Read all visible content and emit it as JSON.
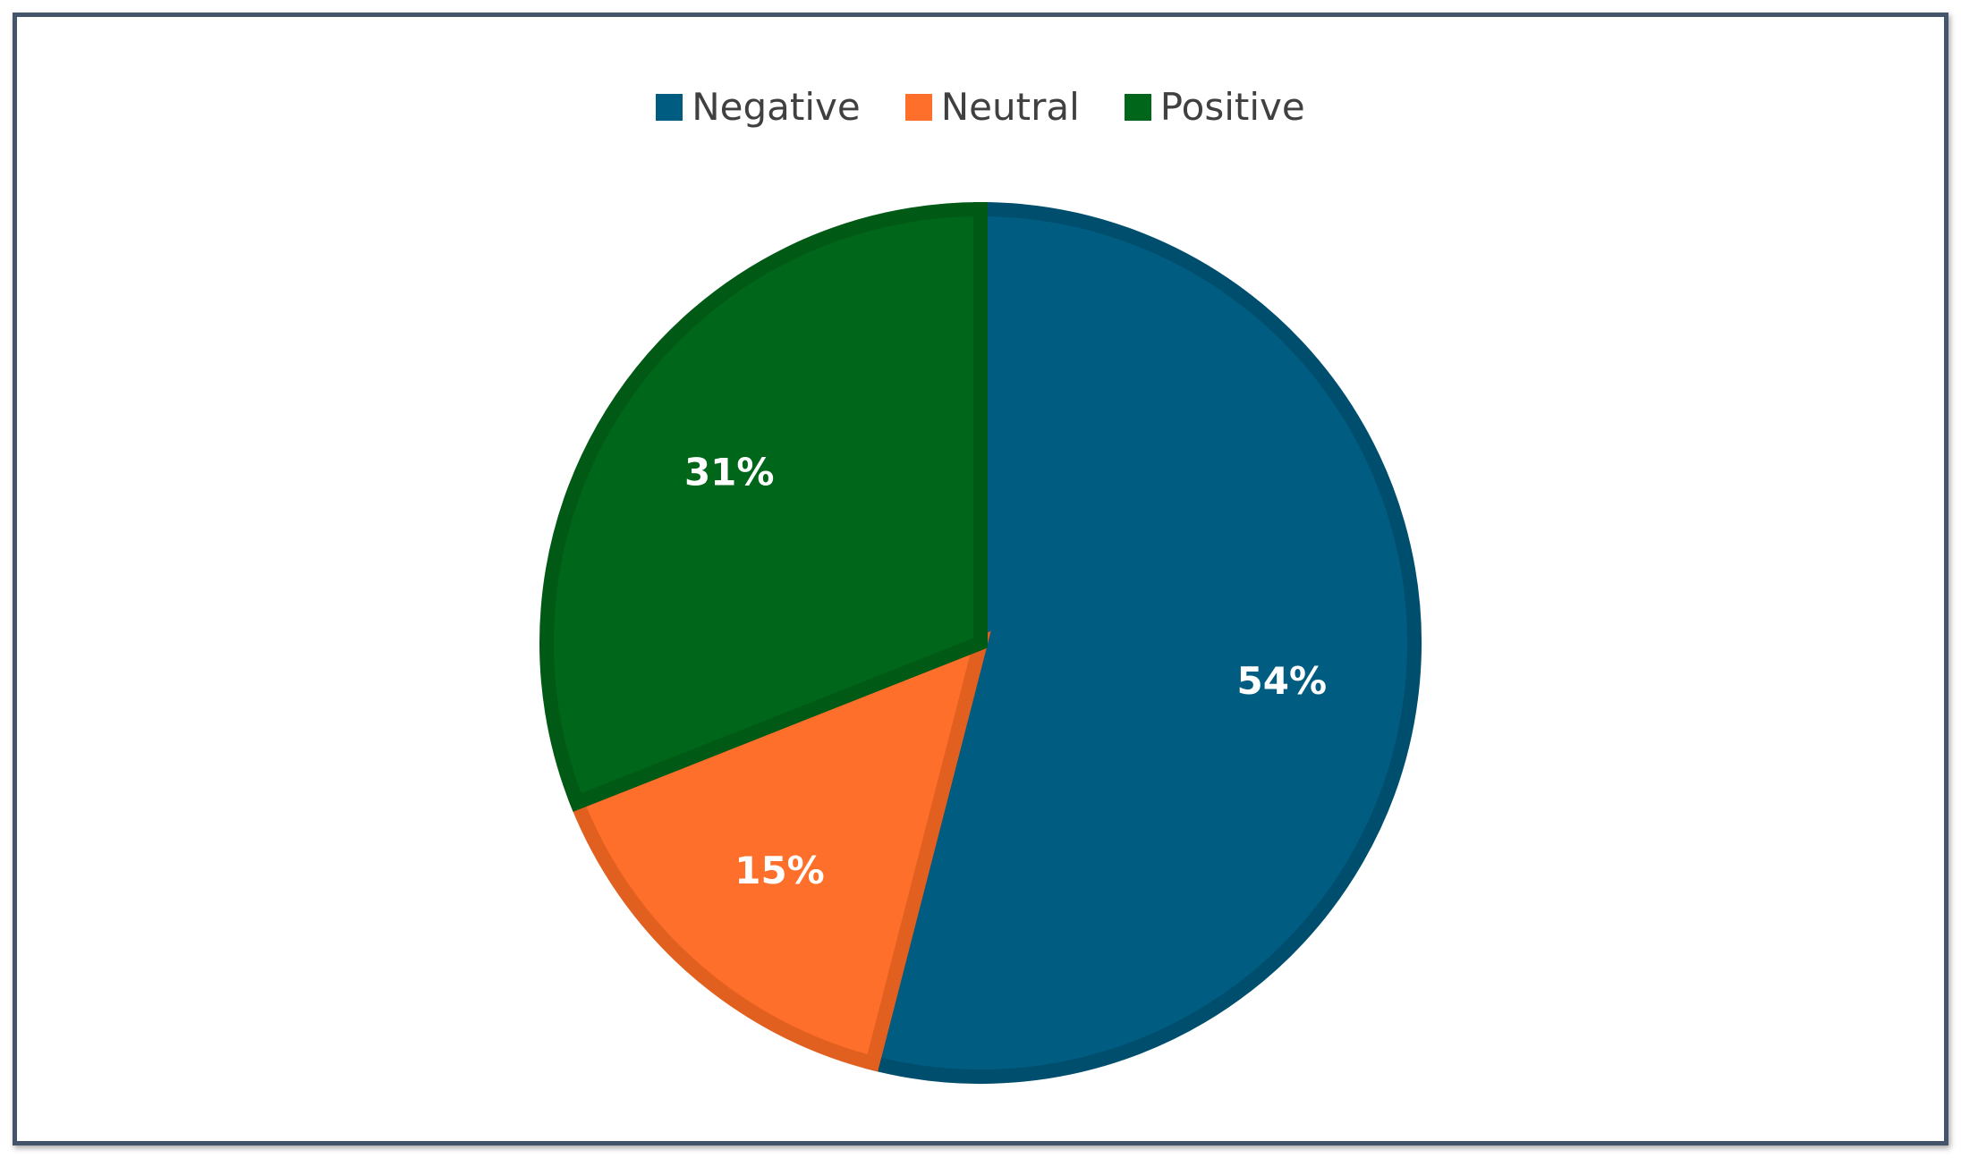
{
  "chart_data": {
    "type": "pie",
    "title": "",
    "legend_position": "top",
    "slices": [
      {
        "name": "Negative",
        "value": 54,
        "label": "54%",
        "color": "#005c80",
        "edge": "#004e6d"
      },
      {
        "name": "Neutral",
        "value": 15,
        "label": "15%",
        "color": "#fd6f2a",
        "edge": "#e2601f"
      },
      {
        "name": "Positive",
        "value": 31,
        "label": "31%",
        "color": "#006619",
        "edge": "#005a15"
      }
    ]
  }
}
